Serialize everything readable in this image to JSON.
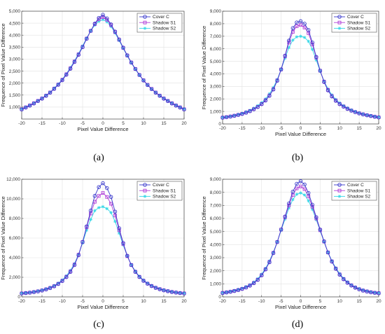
{
  "colors": {
    "cover": "#3a3acc",
    "s1": "#b040d8",
    "s2": "#33d6e6"
  },
  "chart_data": [
    {
      "type": "line",
      "caption": "(a)",
      "xlabel": "Pixel Value Difference",
      "ylabel": "Frequence of Pixel Value Difference",
      "xlim": [
        -20,
        20
      ],
      "ylim": [
        500,
        5000
      ],
      "xticks": [
        -20,
        -15,
        -10,
        -5,
        0,
        5,
        10,
        15,
        20
      ],
      "xtick_labels": [
        "-20",
        "-15",
        "-10",
        "-5",
        "0",
        "5",
        "10",
        "15",
        "20"
      ],
      "yticks": [
        1000,
        1500,
        2000,
        2500,
        3000,
        3500,
        4000,
        4500,
        5000
      ],
      "ytick_labels": [
        "1,000",
        "1,500",
        "2,000",
        "2,500",
        "3,000",
        "3,500",
        "4,000",
        "4,500",
        "5,000"
      ],
      "grid": true,
      "legend": "top-right",
      "x": [
        -20,
        -19,
        -18,
        -17,
        -16,
        -15,
        -14,
        -13,
        -12,
        -11,
        -10,
        -9,
        -8,
        -7,
        -6,
        -5,
        -4,
        -3,
        -2,
        -1,
        0,
        1,
        2,
        3,
        4,
        5,
        6,
        7,
        8,
        9,
        10,
        11,
        12,
        13,
        14,
        15,
        16,
        17,
        18,
        19,
        20
      ],
      "series": [
        {
          "name": "Cover C",
          "key": "cover",
          "marker": "circle",
          "values": [
            900,
            980,
            1060,
            1150,
            1250,
            1350,
            1470,
            1600,
            1760,
            1930,
            2120,
            2350,
            2600,
            2880,
            3180,
            3500,
            3850,
            4180,
            4480,
            4720,
            4850,
            4700,
            4450,
            4150,
            3820,
            3480,
            3160,
            2860,
            2590,
            2340,
            2110,
            1920,
            1750,
            1600,
            1470,
            1350,
            1250,
            1150,
            1060,
            980,
            900
          ]
        },
        {
          "name": "Shadow S1",
          "key": "s1",
          "marker": "square",
          "values": [
            910,
            990,
            1070,
            1160,
            1260,
            1360,
            1480,
            1610,
            1770,
            1940,
            2140,
            2370,
            2620,
            2900,
            3200,
            3510,
            3860,
            4180,
            4460,
            4660,
            4750,
            4640,
            4420,
            4130,
            3810,
            3470,
            3150,
            2860,
            2590,
            2340,
            2120,
            1930,
            1760,
            1610,
            1480,
            1360,
            1260,
            1160,
            1070,
            990,
            910
          ]
        },
        {
          "name": "Shadow S2",
          "key": "s2",
          "marker": "star",
          "values": [
            920,
            1000,
            1080,
            1170,
            1270,
            1370,
            1490,
            1620,
            1790,
            1960,
            2160,
            2390,
            2650,
            2930,
            3230,
            3550,
            3880,
            4180,
            4420,
            4580,
            4650,
            4560,
            4360,
            4090,
            3780,
            3450,
            3130,
            2840,
            2570,
            2330,
            2110,
            1920,
            1750,
            1610,
            1480,
            1370,
            1270,
            1170,
            1080,
            1000,
            920
          ]
        }
      ]
    },
    {
      "type": "line",
      "caption": "(b)",
      "xlabel": "Pixel Value Difference",
      "ylabel": "Frequence of Pixel Value Difference",
      "xlim": [
        -20,
        20
      ],
      "ylim": [
        0,
        9000
      ],
      "xticks": [
        -20,
        -15,
        -10,
        -5,
        0,
        5,
        10,
        15,
        20
      ],
      "xtick_labels": [
        "-20",
        "-15",
        "-10",
        "-5",
        "0",
        "5",
        "10",
        "15",
        "20"
      ],
      "yticks": [
        0,
        1000,
        2000,
        3000,
        4000,
        5000,
        6000,
        7000,
        8000,
        9000
      ],
      "ytick_labels": [
        "0",
        "1,000",
        "2,000",
        "3,000",
        "4,000",
        "5,000",
        "6,000",
        "7,000",
        "8,000",
        "9,000"
      ],
      "grid": true,
      "legend": "top-right",
      "x": [
        -20,
        -19,
        -18,
        -17,
        -16,
        -15,
        -14,
        -13,
        -12,
        -11,
        -10,
        -9,
        -8,
        -7,
        -6,
        -5,
        -4,
        -3,
        -2,
        -1,
        0,
        1,
        2,
        3,
        4,
        5,
        6,
        7,
        8,
        9,
        10,
        11,
        12,
        13,
        14,
        15,
        16,
        17,
        18,
        19,
        20
      ],
      "series": [
        {
          "name": "Cover C",
          "key": "cover",
          "marker": "circle",
          "values": [
            500,
            540,
            590,
            650,
            720,
            800,
            900,
            1020,
            1170,
            1350,
            1580,
            1870,
            2250,
            2750,
            3450,
            4350,
            5450,
            6650,
            7650,
            8100,
            8200,
            8000,
            7500,
            6500,
            5350,
            4250,
            3350,
            2680,
            2200,
            1850,
            1580,
            1380,
            1200,
            1060,
            940,
            840,
            760,
            690,
            630,
            570,
            520
          ]
        },
        {
          "name": "Shadow S1",
          "key": "s1",
          "marker": "square",
          "values": [
            510,
            550,
            600,
            660,
            730,
            810,
            910,
            1030,
            1190,
            1370,
            1600,
            1900,
            2280,
            2780,
            3480,
            4350,
            5400,
            6500,
            7350,
            7800,
            7900,
            7700,
            7250,
            6350,
            5300,
            4250,
            3380,
            2720,
            2230,
            1880,
            1600,
            1400,
            1220,
            1070,
            950,
            850,
            770,
            700,
            640,
            580,
            530
          ]
        },
        {
          "name": "Shadow S2",
          "key": "s2",
          "marker": "star",
          "values": [
            520,
            560,
            620,
            680,
            760,
            850,
            960,
            1090,
            1260,
            1460,
            1700,
            2000,
            2400,
            2900,
            3550,
            4350,
            5250,
            6100,
            6700,
            6950,
            7000,
            6900,
            6600,
            5950,
            5100,
            4200,
            3420,
            2800,
            2320,
            1960,
            1680,
            1460,
            1280,
            1120,
            990,
            880,
            800,
            720,
            660,
            600,
            550
          ]
        }
      ]
    },
    {
      "type": "line",
      "caption": "(c)",
      "xlabel": "Pixel Value Difference",
      "ylabel": "Frequence of Pixel Value Difference",
      "xlim": [
        -20,
        20
      ],
      "ylim": [
        0,
        12000
      ],
      "xticks": [
        -20,
        -15,
        -10,
        -5,
        0,
        5,
        10,
        15,
        20
      ],
      "xtick_labels": [
        "-20",
        "-15",
        "-10",
        "-5",
        "0",
        "5",
        "10",
        "15",
        "20"
      ],
      "yticks": [
        0,
        2000,
        4000,
        6000,
        8000,
        10000,
        12000
      ],
      "ytick_labels": [
        "0",
        "2,000",
        "4,000",
        "6,000",
        "8,000",
        "10,000",
        "12,000"
      ],
      "grid": true,
      "legend": "top-right",
      "x": [
        -20,
        -19,
        -18,
        -17,
        -16,
        -15,
        -14,
        -13,
        -12,
        -11,
        -10,
        -9,
        -8,
        -7,
        -6,
        -5,
        -4,
        -3,
        -2,
        -1,
        0,
        1,
        2,
        3,
        4,
        5,
        6,
        7,
        8,
        9,
        10,
        11,
        12,
        13,
        14,
        15,
        16,
        17,
        18,
        19,
        20
      ],
      "series": [
        {
          "name": "Cover C",
          "key": "cover",
          "marker": "circle",
          "values": [
            350,
            390,
            430,
            490,
            560,
            650,
            760,
            900,
            1080,
            1320,
            1620,
            2020,
            2550,
            3250,
            4250,
            5600,
            7200,
            8800,
            10300,
            11200,
            11600,
            11100,
            10200,
            8700,
            7000,
            5500,
            4200,
            3250,
            2550,
            2030,
            1640,
            1340,
            1100,
            920,
            780,
            670,
            580,
            500,
            440,
            390,
            350
          ]
        },
        {
          "name": "Shadow S1",
          "key": "s1",
          "marker": "square",
          "values": [
            360,
            400,
            440,
            500,
            570,
            660,
            780,
            920,
            1100,
            1340,
            1650,
            2060,
            2600,
            3300,
            4300,
            5600,
            7100,
            8500,
            9700,
            10300,
            10600,
            10200,
            9500,
            8300,
            6800,
            5400,
            4150,
            3250,
            2570,
            2050,
            1660,
            1360,
            1120,
            940,
            800,
            680,
            590,
            510,
            450,
            400,
            360
          ]
        },
        {
          "name": "Shadow S2",
          "key": "s2",
          "marker": "star",
          "values": [
            380,
            420,
            470,
            530,
            610,
            700,
            820,
            970,
            1160,
            1410,
            1730,
            2150,
            2700,
            3400,
            4350,
            5500,
            6800,
            7900,
            8800,
            9100,
            9200,
            9000,
            8600,
            7700,
            6500,
            5300,
            4150,
            3280,
            2620,
            2100,
            1710,
            1410,
            1170,
            980,
            830,
            710,
            620,
            540,
            470,
            420,
            380
          ]
        }
      ]
    },
    {
      "type": "line",
      "caption": "(d)",
      "xlabel": "Pixel Value Difference",
      "ylabel": "Frequence of Pixel Value Difference",
      "xlim": [
        -20,
        20
      ],
      "ylim": [
        0,
        9000
      ],
      "xticks": [
        -20,
        -15,
        -10,
        -5,
        0,
        5,
        10,
        15,
        20
      ],
      "xtick_labels": [
        "-20",
        "-15",
        "-10",
        "-5",
        "0",
        "5",
        "10",
        "15",
        "20"
      ],
      "yticks": [
        0,
        1000,
        2000,
        3000,
        4000,
        5000,
        6000,
        7000,
        8000,
        9000
      ],
      "ytick_labels": [
        "0",
        "1,000",
        "2,000",
        "3,000",
        "4,000",
        "5,000",
        "6,000",
        "7,000",
        "8,000",
        "9,000"
      ],
      "grid": true,
      "legend": "top-right",
      "x": [
        -20,
        -19,
        -18,
        -17,
        -16,
        -15,
        -14,
        -13,
        -12,
        -11,
        -10,
        -9,
        -8,
        -7,
        -6,
        -5,
        -4,
        -3,
        -2,
        -1,
        0,
        1,
        2,
        3,
        4,
        5,
        6,
        7,
        8,
        9,
        10,
        11,
        12,
        13,
        14,
        15,
        16,
        17,
        18,
        19,
        20
      ],
      "series": [
        {
          "name": "Cover C",
          "key": "cover",
          "marker": "circle",
          "values": [
            300,
            340,
            390,
            450,
            520,
            610,
            720,
            860,
            1050,
            1300,
            1650,
            2100,
            2650,
            3350,
            4200,
            5150,
            6150,
            7150,
            8050,
            8650,
            8850,
            8600,
            7950,
            7050,
            6100,
            5150,
            4250,
            3400,
            2700,
            2150,
            1700,
            1350,
            1080,
            870,
            700,
            580,
            480,
            410,
            350,
            310,
            280
          ]
        },
        {
          "name": "Shadow S1",
          "key": "s1",
          "marker": "square",
          "values": [
            310,
            350,
            400,
            460,
            530,
            620,
            730,
            880,
            1070,
            1320,
            1670,
            2120,
            2680,
            3370,
            4200,
            5150,
            6100,
            7000,
            7800,
            8300,
            8450,
            8250,
            7700,
            6900,
            6000,
            5100,
            4230,
            3400,
            2720,
            2170,
            1720,
            1370,
            1100,
            890,
            720,
            590,
            490,
            420,
            360,
            320,
            290
          ]
        },
        {
          "name": "Shadow S2",
          "key": "s2",
          "marker": "star",
          "values": [
            330,
            370,
            420,
            490,
            570,
            660,
            780,
            930,
            1130,
            1390,
            1740,
            2180,
            2740,
            3420,
            4200,
            5100,
            5950,
            6800,
            7450,
            7850,
            7950,
            7800,
            7350,
            6700,
            5900,
            5050,
            4200,
            3420,
            2760,
            2220,
            1780,
            1420,
            1150,
            930,
            760,
            630,
            530,
            450,
            390,
            340,
            310
          ]
        }
      ]
    }
  ]
}
